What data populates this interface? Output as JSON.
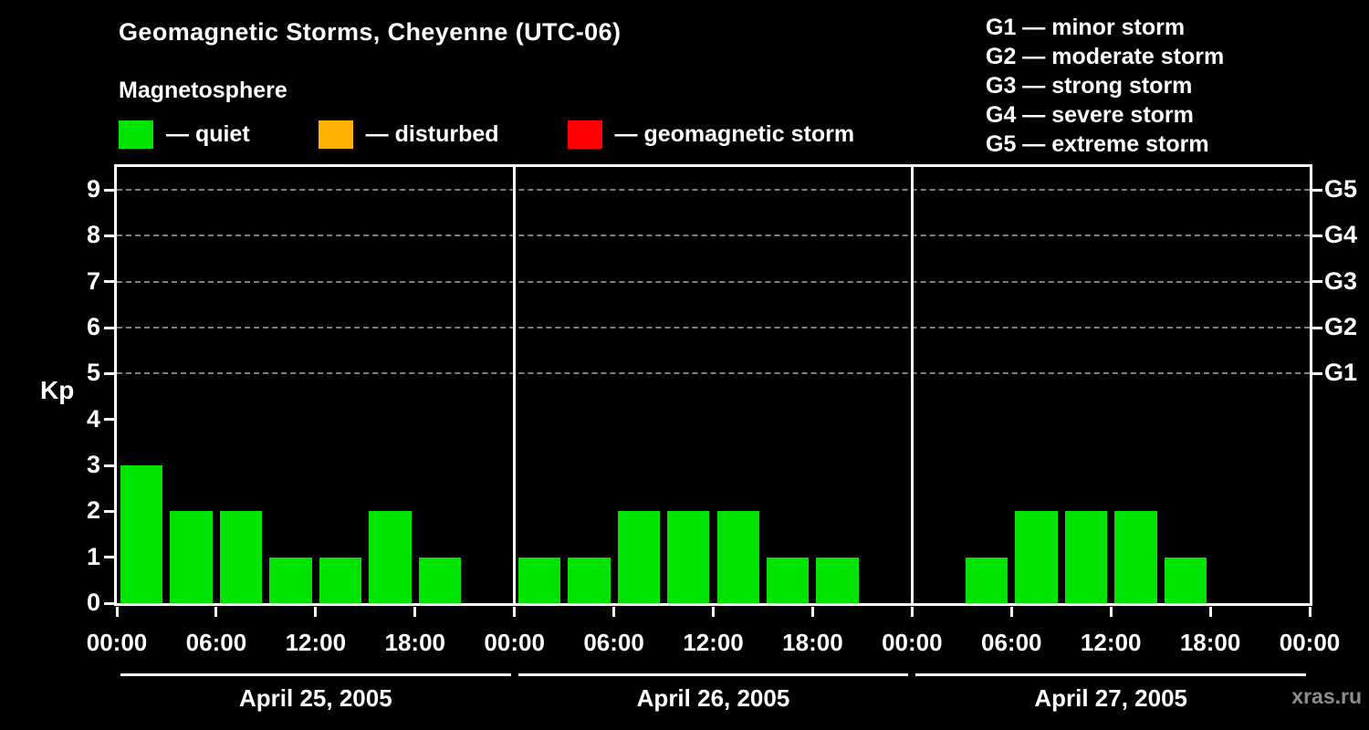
{
  "chart_data": {
    "type": "bar",
    "title": "Geomagnetic Storms, Cheyenne (UTC-06)",
    "subtitle": "Magnetosphere",
    "ylabel": "Kp",
    "ylim": [
      0,
      9.5
    ],
    "y_ticks": [
      0,
      1,
      2,
      3,
      4,
      5,
      6,
      7,
      8,
      9
    ],
    "grid_kp_levels": [
      5,
      6,
      7,
      8,
      9
    ],
    "interval_hours": 3,
    "x_tick_labels_per_day": [
      "00:00",
      "06:00",
      "12:00",
      "18:00"
    ],
    "x_axis_end_label": "00:00",
    "bar_color": "#00e400",
    "grid_color": "#7f7f7f",
    "days": [
      {
        "date": "April 25, 2005",
        "kp_values": [
          3,
          2,
          2,
          1,
          1,
          2,
          1,
          0
        ]
      },
      {
        "date": "April 26, 2005",
        "kp_values": [
          1,
          1,
          2,
          2,
          2,
          1,
          1,
          0
        ]
      },
      {
        "date": "April 27, 2005",
        "kp_values": [
          0,
          1,
          2,
          2,
          2,
          1,
          0,
          0
        ]
      }
    ],
    "right_axis_labels": [
      {
        "label": "G5",
        "kp": 9
      },
      {
        "label": "G4",
        "kp": 8
      },
      {
        "label": "G3",
        "kp": 7
      },
      {
        "label": "G2",
        "kp": 6
      },
      {
        "label": "G1",
        "kp": 5
      }
    ],
    "legend": [
      {
        "label": "— quiet",
        "color": "#00e400"
      },
      {
        "label": "— disturbed",
        "color": "#ffb000"
      },
      {
        "label": "— geomagnetic storm",
        "color": "#ff0000"
      }
    ],
    "storm_scale_legend": [
      "G1 — minor storm",
      "G2 — moderate storm",
      "G3 — strong storm",
      "G4 — severe storm",
      "G5 — extreme storm"
    ],
    "watermark": "xras.ru"
  }
}
